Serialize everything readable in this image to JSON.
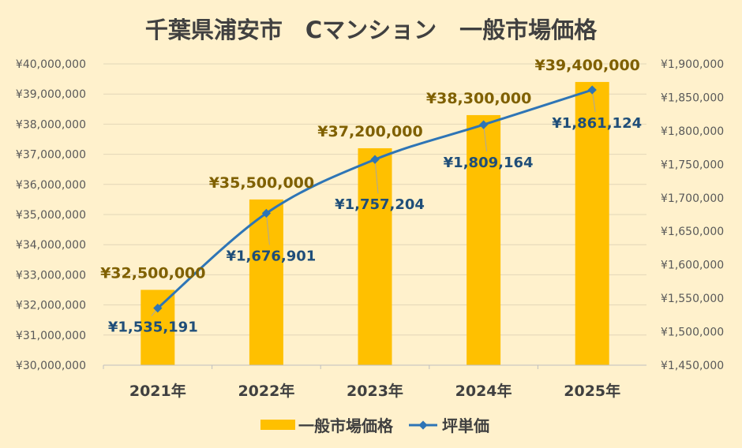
{
  "colors": {
    "background": "#FFF1CC",
    "bar": "#FFC000",
    "line": "#2E75B6",
    "bar_label": "#7F6000",
    "line_label": "#1F4E79",
    "grid": "#E2D6B8"
  },
  "chart_data": {
    "type": "bar",
    "title": "千葉県浦安市　Cマンション　一般市場価格",
    "categories": [
      "2021年",
      "2022年",
      "2023年",
      "2024年",
      "2025年"
    ],
    "series": [
      {
        "name": "一般市場価格",
        "type": "bar",
        "axis": "left",
        "values": [
          32500000,
          35500000,
          37200000,
          38300000,
          39400000
        ],
        "labels": [
          "¥32,500,000",
          "¥35,500,000",
          "¥37,200,000",
          "¥38,300,000",
          "¥39,400,000"
        ]
      },
      {
        "name": "坪単価",
        "type": "line",
        "axis": "right",
        "values": [
          1535191,
          1676901,
          1757204,
          1809164,
          1861124
        ],
        "labels": [
          "¥1,535,191",
          "¥1,676,901",
          "¥1,757,204",
          "¥1,809,164",
          "¥1,861,124"
        ]
      }
    ],
    "y_left": {
      "min": 30000000,
      "max": 40000000,
      "step": 1000000,
      "tick_labels": [
        "¥30,000,000",
        "¥31,000,000",
        "¥32,000,000",
        "¥33,000,000",
        "¥34,000,000",
        "¥35,000,000",
        "¥36,000,000",
        "¥37,000,000",
        "¥38,000,000",
        "¥39,000,000",
        "¥40,000,000"
      ]
    },
    "y_right": {
      "min": 1450000,
      "max": 1900000,
      "step": 50000,
      "tick_labels": [
        "¥1,450,000",
        "¥1,500,000",
        "¥1,550,000",
        "¥1,600,000",
        "¥1,650,000",
        "¥1,700,000",
        "¥1,750,000",
        "¥1,800,000",
        "¥1,850,000",
        "¥1,900,000"
      ]
    },
    "grid": true,
    "legend": "bottom"
  }
}
